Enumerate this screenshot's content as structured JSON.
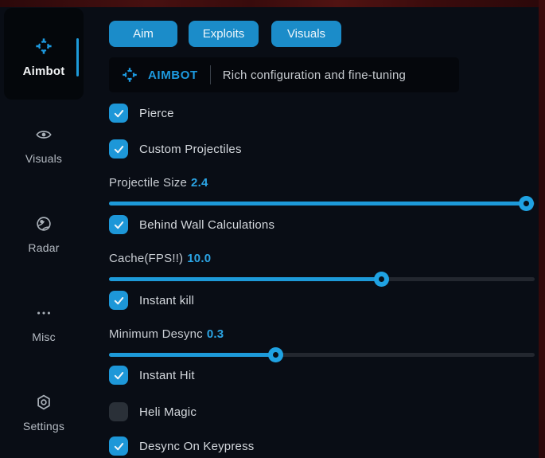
{
  "colors": {
    "accent": "#1d9ad9",
    "accent_value_text": "#2ba4e4",
    "tab_blue": "#1b8cc9",
    "background": "#090d15",
    "panel": "#05070c",
    "red_border": "#3c0b0c",
    "unchecked_box": "#2a3038",
    "slider_track": "#23272f"
  },
  "sidebar": {
    "items": [
      {
        "label": "Aimbot",
        "icon": "crosshair-icon",
        "active": true
      },
      {
        "label": "Visuals",
        "icon": "eye-icon",
        "active": false
      },
      {
        "label": "Radar",
        "icon": "globe-icon",
        "active": false
      },
      {
        "label": "Misc",
        "icon": "ellipsis-icon",
        "active": false
      },
      {
        "label": "Settings",
        "icon": "gear-icon",
        "active": false
      }
    ]
  },
  "tabs": [
    {
      "label": "Aim"
    },
    {
      "label": "Exploits"
    },
    {
      "label": "Visuals"
    }
  ],
  "header": {
    "icon": "crosshair-icon",
    "title": "AIMBOT",
    "subtitle": "Rich configuration and fine-tuning"
  },
  "controls": [
    {
      "type": "checkbox",
      "label": "Pierce",
      "checked": true
    },
    {
      "type": "checkbox",
      "label": "Custom Projectiles",
      "checked": true
    },
    {
      "type": "slider",
      "label": "Projectile Size",
      "value": "2.4",
      "percent": 98
    },
    {
      "type": "checkbox",
      "label": "Behind Wall Calculations",
      "checked": true
    },
    {
      "type": "slider",
      "label": "Cache(FPS!!)",
      "value": "10.0",
      "percent": 64
    },
    {
      "type": "checkbox",
      "label": "Instant kill",
      "checked": true
    },
    {
      "type": "slider",
      "label": "Minimum Desync",
      "value": "0.3",
      "percent": 39
    },
    {
      "type": "checkbox",
      "label": "Instant Hit",
      "checked": true
    },
    {
      "type": "checkbox",
      "label": "Heli Magic",
      "checked": false
    },
    {
      "type": "checkbox",
      "label": "Desync On Keypress",
      "checked": true
    }
  ]
}
